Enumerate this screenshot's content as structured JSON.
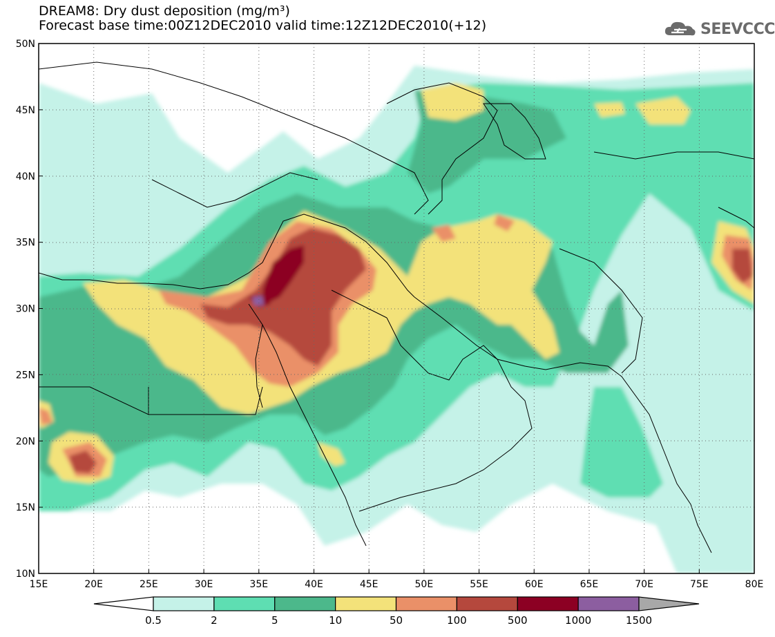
{
  "header": {
    "title_line1": "DREAM8: Dry dust deposition (mg/m³)",
    "title_line2": "Forecast base time:00Z12DEC2010 valid time:12Z12DEC2010(+12)",
    "logo_text": "SEEVCCC",
    "logo_icon": "cloud-icon"
  },
  "map": {
    "lon_range": [
      15,
      80
    ],
    "lat_range": [
      10,
      50
    ],
    "grid": "dotted",
    "lon_ticks": [
      "15E",
      "20E",
      "25E",
      "30E",
      "35E",
      "40E",
      "45E",
      "50E",
      "55E",
      "60E",
      "65E",
      "70E",
      "75E",
      "80E"
    ],
    "lat_ticks": [
      "10N",
      "15N",
      "20N",
      "25N",
      "30N",
      "35N",
      "40N",
      "45N",
      "50N"
    ]
  },
  "colorbar": {
    "levels": [
      "0.5",
      "2",
      "5",
      "10",
      "50",
      "100",
      "500",
      "1000",
      "1500"
    ],
    "colors": [
      "#ffffff",
      "#c5f2e8",
      "#5edeb2",
      "#4cb88b",
      "#f3e27a",
      "#ea9068",
      "#b5483d",
      "#8c0023",
      "#8c5ea0",
      "#a8a8a8"
    ]
  },
  "chart_data": {
    "type": "heatmap",
    "title": "DREAM8: Dry dust deposition (mg/m³)",
    "subtitle": "Forecast base time:00Z12DEC2010 valid time:12Z12DEC2010(+12)",
    "xlabel": "",
    "ylabel": "",
    "xlim": [
      15,
      80
    ],
    "ylim": [
      10,
      50
    ],
    "units": "mg/m³",
    "regions": [
      {
        "lon": [
          15,
          32
        ],
        "lat": [
          14,
          32
        ],
        "level_min": 2,
        "level_max": 10
      },
      {
        "lon": [
          18,
          22
        ],
        "lat": [
          17,
          20
        ],
        "level_min": 100,
        "level_max": 500
      },
      {
        "lon": [
          15,
          17
        ],
        "lat": [
          21,
          23
        ],
        "level_min": 100,
        "level_max": 500
      },
      {
        "lon": [
          23,
          42
        ],
        "lat": [
          25,
          33
        ],
        "level_min": 10,
        "level_max": 50
      },
      {
        "lon": [
          29,
          38
        ],
        "lat": [
          27,
          32
        ],
        "level_min": 50,
        "level_max": 500
      },
      {
        "lon": [
          35,
          44
        ],
        "lat": [
          26,
          37
        ],
        "level_min": 100,
        "level_max": 1500
      },
      {
        "lon": [
          38,
          40
        ],
        "lat": [
          30,
          35
        ],
        "level_min": 500,
        "level_max": 1000
      },
      {
        "lon": [
          35,
          37
        ],
        "lat": [
          30,
          31
        ],
        "level_min": 1000,
        "level_max": 1500
      },
      {
        "lon": [
          48,
          60
        ],
        "lat": [
          27,
          37
        ],
        "level_min": 10,
        "level_max": 100
      },
      {
        "lon": [
          76,
          80
        ],
        "lat": [
          30,
          36
        ],
        "level_min": 50,
        "level_max": 500
      },
      {
        "lon": [
          50,
          80
        ],
        "lat": [
          42,
          47
        ],
        "level_min": 2,
        "level_max": 100
      },
      {
        "lon": [
          40,
          75
        ],
        "lat": [
          12,
          26
        ],
        "level_min": 0.5,
        "level_max": 5
      }
    ]
  }
}
